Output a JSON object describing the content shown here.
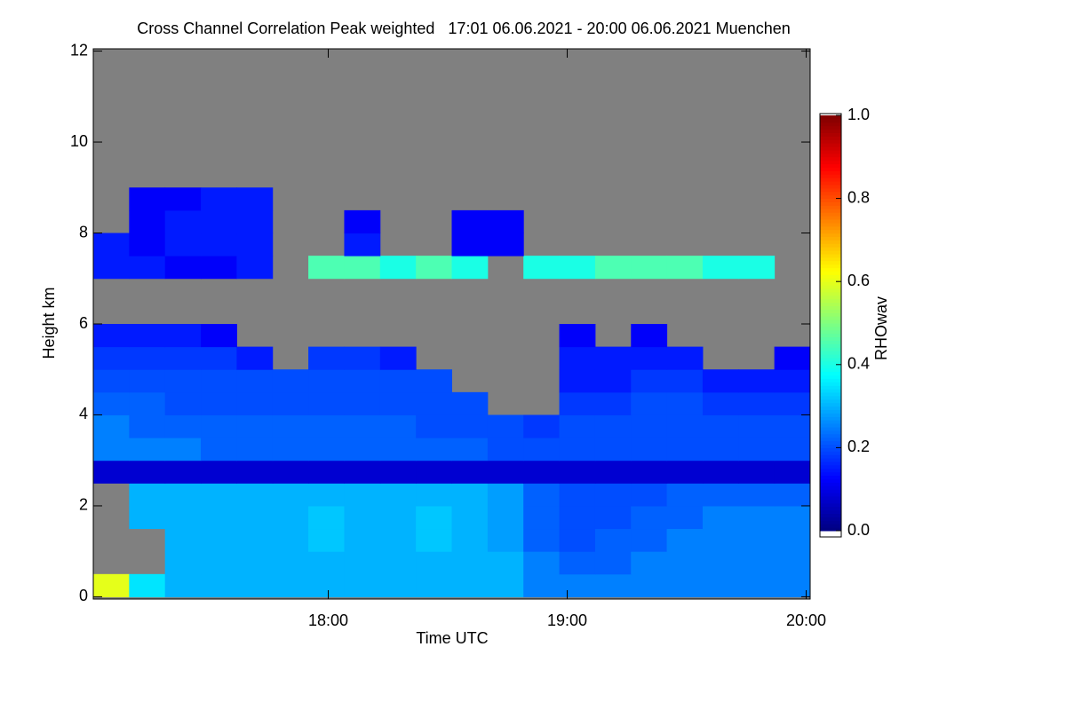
{
  "chart_data": {
    "type": "heatmap",
    "title": "Cross Channel Correlation Peak weighted   17:01 06.06.2021 - 20:00 06.06.2021 Muenchen",
    "x_label": "Time UTC",
    "y_label": "Height km",
    "colorbar_label": "RHOwav",
    "colormap": "jet",
    "missing_color": "#808080",
    "xlim": [
      1021,
      1201
    ],
    "ylim": [
      -0.05,
      12.05
    ],
    "xticks": [
      {
        "value": 1080,
        "label": "18:00"
      },
      {
        "value": 1140,
        "label": "19:00"
      },
      {
        "value": 1200,
        "label": "20:00"
      }
    ],
    "yticks": [
      0,
      2,
      4,
      6,
      8,
      10,
      12
    ],
    "clim": [
      0,
      1
    ],
    "cticks": [
      {
        "value": 0,
        "label": "0.0"
      },
      0.2,
      0.4,
      0.6,
      0.8,
      {
        "value": 1,
        "label": "1.0"
      }
    ],
    "x": [
      1021,
      1030,
      1039,
      1048,
      1057,
      1066,
      1075,
      1084,
      1093,
      1102,
      1111,
      1120,
      1129,
      1138,
      1147,
      1156,
      1165,
      1174,
      1183,
      1192,
      1201
    ],
    "y": [
      0,
      0.5,
      1,
      1.5,
      2,
      2.5,
      3,
      3.5,
      4,
      4.5,
      5,
      5.5,
      6,
      6.5,
      7,
      7.5,
      8,
      8.5,
      9,
      9.5,
      10,
      10.5,
      11,
      11.5,
      12
    ],
    "z": [
      [
        0.6,
        0.35,
        0.3,
        0.3,
        0.3,
        0.3,
        0.3,
        0.3,
        0.3,
        0.3,
        0.3,
        0.3,
        0.25,
        0.25,
        0.25,
        0.25,
        0.25,
        0.25,
        0.25,
        0.25
      ],
      [
        null,
        null,
        0.3,
        0.3,
        0.3,
        0.3,
        0.3,
        0.3,
        0.3,
        0.3,
        0.3,
        0.3,
        0.25,
        0.22,
        0.22,
        0.25,
        0.25,
        0.25,
        0.25,
        0.25
      ],
      [
        null,
        null,
        0.3,
        0.3,
        0.3,
        0.3,
        0.32,
        0.3,
        0.3,
        0.32,
        0.3,
        0.28,
        0.22,
        0.2,
        0.22,
        0.22,
        0.25,
        0.25,
        0.25,
        0.25
      ],
      [
        null,
        0.3,
        0.3,
        0.3,
        0.3,
        0.3,
        0.32,
        0.3,
        0.3,
        0.32,
        0.3,
        0.28,
        0.22,
        0.2,
        0.2,
        0.22,
        0.22,
        0.25,
        0.25,
        0.25
      ],
      [
        null,
        0.3,
        0.3,
        0.3,
        0.3,
        0.3,
        0.3,
        0.3,
        0.3,
        0.3,
        0.3,
        0.28,
        0.22,
        0.2,
        0.2,
        0.2,
        0.22,
        0.22,
        0.22,
        0.22
      ],
      [
        0.08,
        0.08,
        0.08,
        0.08,
        0.08,
        0.08,
        0.08,
        0.08,
        0.08,
        0.08,
        0.08,
        0.08,
        0.08,
        0.08,
        0.08,
        0.08,
        0.08,
        0.08,
        0.08,
        0.08
      ],
      [
        0.25,
        0.25,
        0.25,
        0.22,
        0.22,
        0.22,
        0.22,
        0.22,
        0.22,
        0.22,
        0.22,
        0.2,
        0.2,
        0.2,
        0.2,
        0.2,
        0.2,
        0.2,
        0.2,
        0.2
      ],
      [
        0.25,
        0.22,
        0.22,
        0.22,
        0.22,
        0.22,
        0.22,
        0.22,
        0.22,
        0.2,
        0.2,
        0.2,
        0.18,
        0.2,
        0.2,
        0.2,
        0.2,
        0.2,
        0.2,
        0.2
      ],
      [
        0.22,
        0.22,
        0.2,
        0.2,
        0.2,
        0.2,
        0.2,
        0.2,
        0.2,
        0.2,
        0.2,
        null,
        null,
        0.18,
        0.18,
        0.2,
        0.2,
        0.18,
        0.18,
        0.18
      ],
      [
        0.2,
        0.2,
        0.2,
        0.2,
        0.2,
        0.2,
        0.2,
        0.2,
        0.2,
        0.2,
        null,
        null,
        null,
        0.15,
        0.15,
        0.18,
        0.18,
        0.15,
        0.15,
        0.15
      ],
      [
        0.18,
        0.18,
        0.18,
        0.18,
        0.15,
        null,
        0.18,
        0.18,
        0.15,
        null,
        null,
        null,
        null,
        0.15,
        0.15,
        0.15,
        0.15,
        null,
        null,
        0.12
      ],
      [
        0.15,
        0.15,
        0.15,
        0.12,
        null,
        null,
        null,
        null,
        null,
        null,
        null,
        null,
        null,
        0.12,
        null,
        0.12,
        null,
        null,
        null,
        null
      ],
      [
        null,
        null,
        null,
        null,
        null,
        null,
        null,
        null,
        null,
        null,
        null,
        null,
        null,
        null,
        null,
        null,
        null,
        null,
        null,
        null
      ],
      [
        null,
        null,
        null,
        null,
        null,
        null,
        null,
        null,
        null,
        null,
        null,
        null,
        null,
        null,
        null,
        null,
        null,
        null,
        null,
        null
      ],
      [
        0.15,
        0.15,
        0.12,
        0.12,
        0.15,
        null,
        0.45,
        0.45,
        0.4,
        0.45,
        0.4,
        null,
        0.4,
        0.4,
        0.45,
        0.45,
        0.45,
        0.4,
        0.4,
        null
      ],
      [
        0.15,
        0.12,
        0.15,
        0.15,
        0.15,
        null,
        null,
        0.15,
        null,
        null,
        0.12,
        0.12,
        null,
        null,
        null,
        null,
        null,
        null,
        null,
        null
      ],
      [
        null,
        0.12,
        0.15,
        0.15,
        0.15,
        null,
        null,
        0.12,
        null,
        null,
        0.12,
        0.12,
        null,
        null,
        null,
        null,
        null,
        null,
        null,
        null
      ],
      [
        null,
        0.12,
        0.12,
        0.15,
        0.15,
        null,
        null,
        null,
        null,
        null,
        null,
        null,
        null,
        null,
        null,
        null,
        null,
        null,
        null,
        null
      ],
      [
        null,
        null,
        null,
        null,
        null,
        null,
        null,
        null,
        null,
        null,
        null,
        null,
        null,
        null,
        null,
        null,
        null,
        null,
        null,
        null
      ],
      [
        null,
        null,
        null,
        null,
        null,
        null,
        null,
        null,
        null,
        null,
        null,
        null,
        null,
        null,
        null,
        null,
        null,
        null,
        null,
        null
      ],
      [
        null,
        null,
        null,
        null,
        null,
        null,
        null,
        null,
        null,
        null,
        null,
        null,
        null,
        null,
        null,
        null,
        null,
        null,
        null,
        null
      ],
      [
        null,
        null,
        null,
        null,
        null,
        null,
        null,
        null,
        null,
        null,
        null,
        null,
        null,
        null,
        null,
        null,
        null,
        null,
        null,
        null
      ],
      [
        null,
        null,
        null,
        null,
        null,
        null,
        null,
        null,
        null,
        null,
        null,
        null,
        null,
        null,
        null,
        null,
        null,
        null,
        null,
        null
      ],
      [
        null,
        null,
        null,
        null,
        null,
        null,
        null,
        null,
        null,
        null,
        null,
        null,
        null,
        null,
        null,
        null,
        null,
        null,
        null,
        null
      ]
    ]
  }
}
